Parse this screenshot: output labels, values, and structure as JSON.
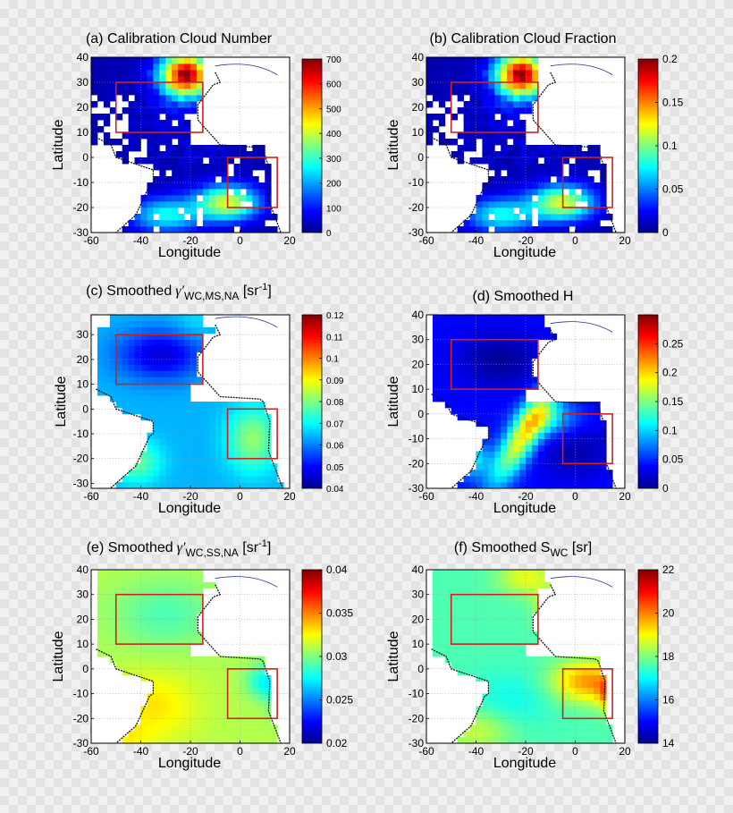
{
  "figure": {
    "colors": {
      "land_fill": "#ffffff",
      "box": "#d02020",
      "coast_black": "#111111",
      "coast_blue": "#223399",
      "grid": "#9a9a9a",
      "colormap": [
        "#00008f",
        "#0000ff",
        "#0080ff",
        "#00ffff",
        "#80ff80",
        "#ffff00",
        "#ff8000",
        "#ff0000",
        "#800000"
      ]
    }
  },
  "chart_data": [
    {
      "id": "a",
      "type": "heatmap",
      "title": "(a) Calibration Cloud Number",
      "xlabel": "Longitude",
      "ylabel": "Latitude",
      "xlim": [
        -60,
        20
      ],
      "ylim": [
        -30,
        40
      ],
      "xticks": [
        "-60",
        "-40",
        "-20",
        "0",
        "20"
      ],
      "yticks": [
        "40",
        "30",
        "20",
        "10",
        "0",
        "-10",
        "-20",
        "-30"
      ],
      "colorbar": {
        "range": [
          0,
          700
        ],
        "ticks": [
          "700",
          "600",
          "500",
          "400",
          "300",
          "200",
          "100",
          "0"
        ]
      },
      "field": "cloud",
      "boxes": [
        {
          "lon": [
            -50,
            -15
          ],
          "lat": [
            10,
            30
          ]
        },
        {
          "lon": [
            -5,
            15
          ],
          "lat": [
            -20,
            0
          ]
        }
      ]
    },
    {
      "id": "b",
      "type": "heatmap",
      "title": "(b) Calibration Cloud Fraction",
      "xlabel": "Longitude",
      "ylabel": "Latitude",
      "xlim": [
        -60,
        20
      ],
      "ylim": [
        -30,
        40
      ],
      "xticks": [
        "-60",
        "-40",
        "-20",
        "0",
        "20"
      ],
      "yticks": [
        "40",
        "30",
        "20",
        "10",
        "0",
        "-10",
        "-20",
        "-30"
      ],
      "colorbar": {
        "range": [
          0,
          0.2
        ],
        "ticks": [
          "0.2",
          "0.15",
          "0.1",
          "0.05",
          "0"
        ]
      },
      "field": "cloud",
      "boxes": [
        {
          "lon": [
            -50,
            -15
          ],
          "lat": [
            10,
            30
          ]
        },
        {
          "lon": [
            -5,
            15
          ],
          "lat": [
            -20,
            0
          ]
        }
      ]
    },
    {
      "id": "c",
      "type": "heatmap",
      "title": "(c) Smoothed",
      "title_symbol": "γ′",
      "title_sub": "WC,MS,NA",
      "title_unit": "[sr",
      "title_unit_sup": "-1",
      "title_unit_end": "]",
      "xlabel": "Longitude",
      "ylabel": "Latitude",
      "xlim": [
        -60,
        20
      ],
      "ylim": [
        -32,
        38
      ],
      "xticks": [
        "-60",
        "-40",
        "-20",
        "0",
        "20"
      ],
      "yticks": [
        "30",
        "20",
        "10",
        "0",
        "-10",
        "-20",
        "-30"
      ],
      "colorbar": {
        "range": [
          0.04,
          0.12
        ],
        "ticks": [
          "0.12",
          "0.11",
          "0.1",
          "0.09",
          "0.08",
          "0.07",
          "0.06",
          "0.05",
          "0.04"
        ]
      },
      "field": "gms",
      "boxes": [
        {
          "lon": [
            -50,
            -15
          ],
          "lat": [
            10,
            30
          ]
        },
        {
          "lon": [
            -5,
            15
          ],
          "lat": [
            -20,
            0
          ]
        }
      ]
    },
    {
      "id": "d",
      "type": "heatmap",
      "title": "(d) Smoothed H",
      "xlabel": "Longitude",
      "ylabel": "Latitude",
      "xlim": [
        -60,
        20
      ],
      "ylim": [
        -30,
        40
      ],
      "xticks": [
        "-60",
        "-40",
        "-20",
        "0",
        "20"
      ],
      "yticks": [
        "40",
        "30",
        "20",
        "10",
        "0",
        "-10",
        "-20",
        "-30"
      ],
      "colorbar": {
        "range": [
          0,
          0.3
        ],
        "ticks": [
          "0.25",
          "0.2",
          "0.15",
          "0.1",
          "0.05",
          "0"
        ]
      },
      "field": "h",
      "boxes": [
        {
          "lon": [
            -50,
            -15
          ],
          "lat": [
            10,
            30
          ]
        },
        {
          "lon": [
            -5,
            15
          ],
          "lat": [
            -20,
            0
          ]
        }
      ]
    },
    {
      "id": "e",
      "type": "heatmap",
      "title": "(e) Smoothed",
      "title_symbol": "γ′",
      "title_sub": "WC,SS,NA",
      "title_unit": "[sr",
      "title_unit_sup": "-1",
      "title_unit_end": "]",
      "xlabel": "Longitude",
      "ylabel": "Latitude",
      "xlim": [
        -60,
        20
      ],
      "ylim": [
        -30,
        40
      ],
      "xticks": [
        "-60",
        "-40",
        "-20",
        "0",
        "20"
      ],
      "yticks": [
        "40",
        "30",
        "20",
        "10",
        "0",
        "-10",
        "-20",
        "-30"
      ],
      "colorbar": {
        "range": [
          0.02,
          0.04
        ],
        "ticks": [
          "0.04",
          "0.035",
          "0.03",
          "0.025",
          "0.02"
        ]
      },
      "field": "gss",
      "boxes": [
        {
          "lon": [
            -50,
            -15
          ],
          "lat": [
            10,
            30
          ]
        },
        {
          "lon": [
            -5,
            15
          ],
          "lat": [
            -20,
            0
          ]
        }
      ]
    },
    {
      "id": "f",
      "type": "heatmap",
      "title": "(f) Smoothed S",
      "title_sub": "WC",
      "title_unit": "[sr]",
      "xlabel": "Longitude",
      "ylabel": "Latitude",
      "xlim": [
        -60,
        20
      ],
      "ylim": [
        -30,
        40
      ],
      "xticks": [
        "-60",
        "-40",
        "-20",
        "0",
        "20"
      ],
      "yticks": [
        "40",
        "30",
        "20",
        "10",
        "0",
        "-10",
        "-20",
        "-30"
      ],
      "colorbar": {
        "range": [
          14,
          22
        ],
        "ticks": [
          "22",
          "20",
          "18",
          "16",
          "14"
        ]
      },
      "field": "s",
      "boxes": [
        {
          "lon": [
            -50,
            -15
          ],
          "lat": [
            10,
            30
          ]
        },
        {
          "lon": [
            -5,
            15
          ],
          "lat": [
            -20,
            0
          ]
        }
      ]
    }
  ]
}
